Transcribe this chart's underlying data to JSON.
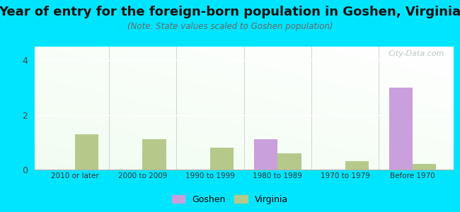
{
  "categories": [
    "2010 or later",
    "2000 to 2009",
    "1990 to 1999",
    "1980 to 1989",
    "1970 to 1979",
    "Before 1970"
  ],
  "goshen_values": [
    0,
    0,
    0,
    1.1,
    0,
    3.0
  ],
  "virginia_values": [
    1.3,
    1.1,
    0.8,
    0.6,
    0.3,
    0.2
  ],
  "goshen_color": "#c9a0dc",
  "virginia_color": "#b5c98a",
  "title": "Year of entry for the foreign-born population in Goshen, Virginia",
  "subtitle": "(Note: State values scaled to Goshen population)",
  "ylim": [
    0,
    4.5
  ],
  "yticks": [
    0,
    2,
    4
  ],
  "bg_outer": "#00e5ff",
  "grid_color": "#ffffff",
  "watermark": "City-Data.com",
  "title_fontsize": 13,
  "subtitle_fontsize": 8.5,
  "bar_width": 0.35
}
